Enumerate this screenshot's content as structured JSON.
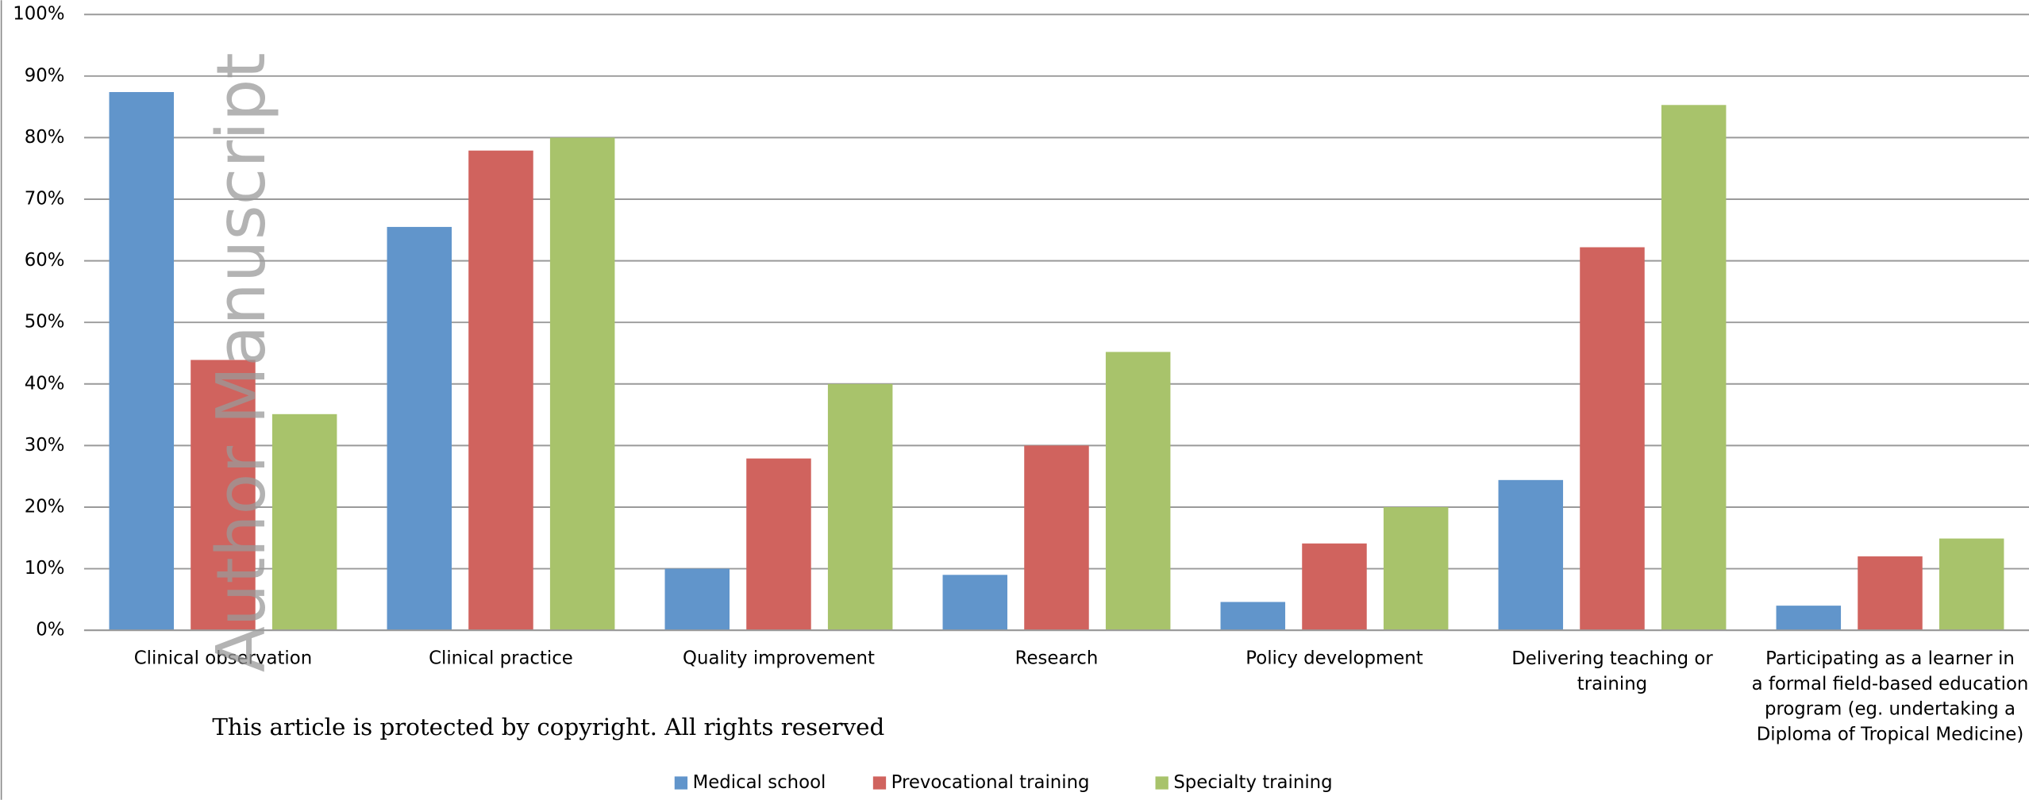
{
  "chart_data": {
    "type": "bar",
    "categories": [
      "Clinical observation",
      "Clinical practice",
      "Quality improvement",
      "Research",
      "Policy development",
      "Delivering teaching or training",
      "Participating as a learner in a formal field-based education program (eg. undertaking a Diploma of Tropical Medicine)"
    ],
    "series": [
      {
        "name": "Medical school",
        "color": "#6195cb",
        "values": [
          87.4,
          65.5,
          10,
          9,
          4.6,
          24.4,
          4
        ]
      },
      {
        "name": "Prevocational training",
        "color": "#d0635e",
        "values": [
          43.9,
          77.9,
          27.9,
          30,
          14.1,
          62.2,
          12
        ]
      },
      {
        "name": "Specialty training",
        "color": "#a8c36b",
        "values": [
          35.1,
          80,
          40,
          45.2,
          20,
          85.3,
          14.9
        ]
      }
    ],
    "ylim": [
      0,
      100
    ],
    "yticks": [
      {
        "value": 0,
        "label": "0%"
      },
      {
        "value": 10,
        "label": "10%"
      },
      {
        "value": 20,
        "label": "20%"
      },
      {
        "value": 30,
        "label": "30%"
      },
      {
        "value": 40,
        "label": "40%"
      },
      {
        "value": 50,
        "label": "50%"
      },
      {
        "value": 60,
        "label": "60%"
      },
      {
        "value": 70,
        "label": "70%"
      },
      {
        "value": 80,
        "label": "80%"
      },
      {
        "value": 90,
        "label": "90%"
      },
      {
        "value": 100,
        "label": "100%"
      }
    ],
    "grid": true,
    "legend": "bottom",
    "annotations": [
      "Author Manuscript",
      "This article is protected by copyright. All rights reserved"
    ]
  }
}
